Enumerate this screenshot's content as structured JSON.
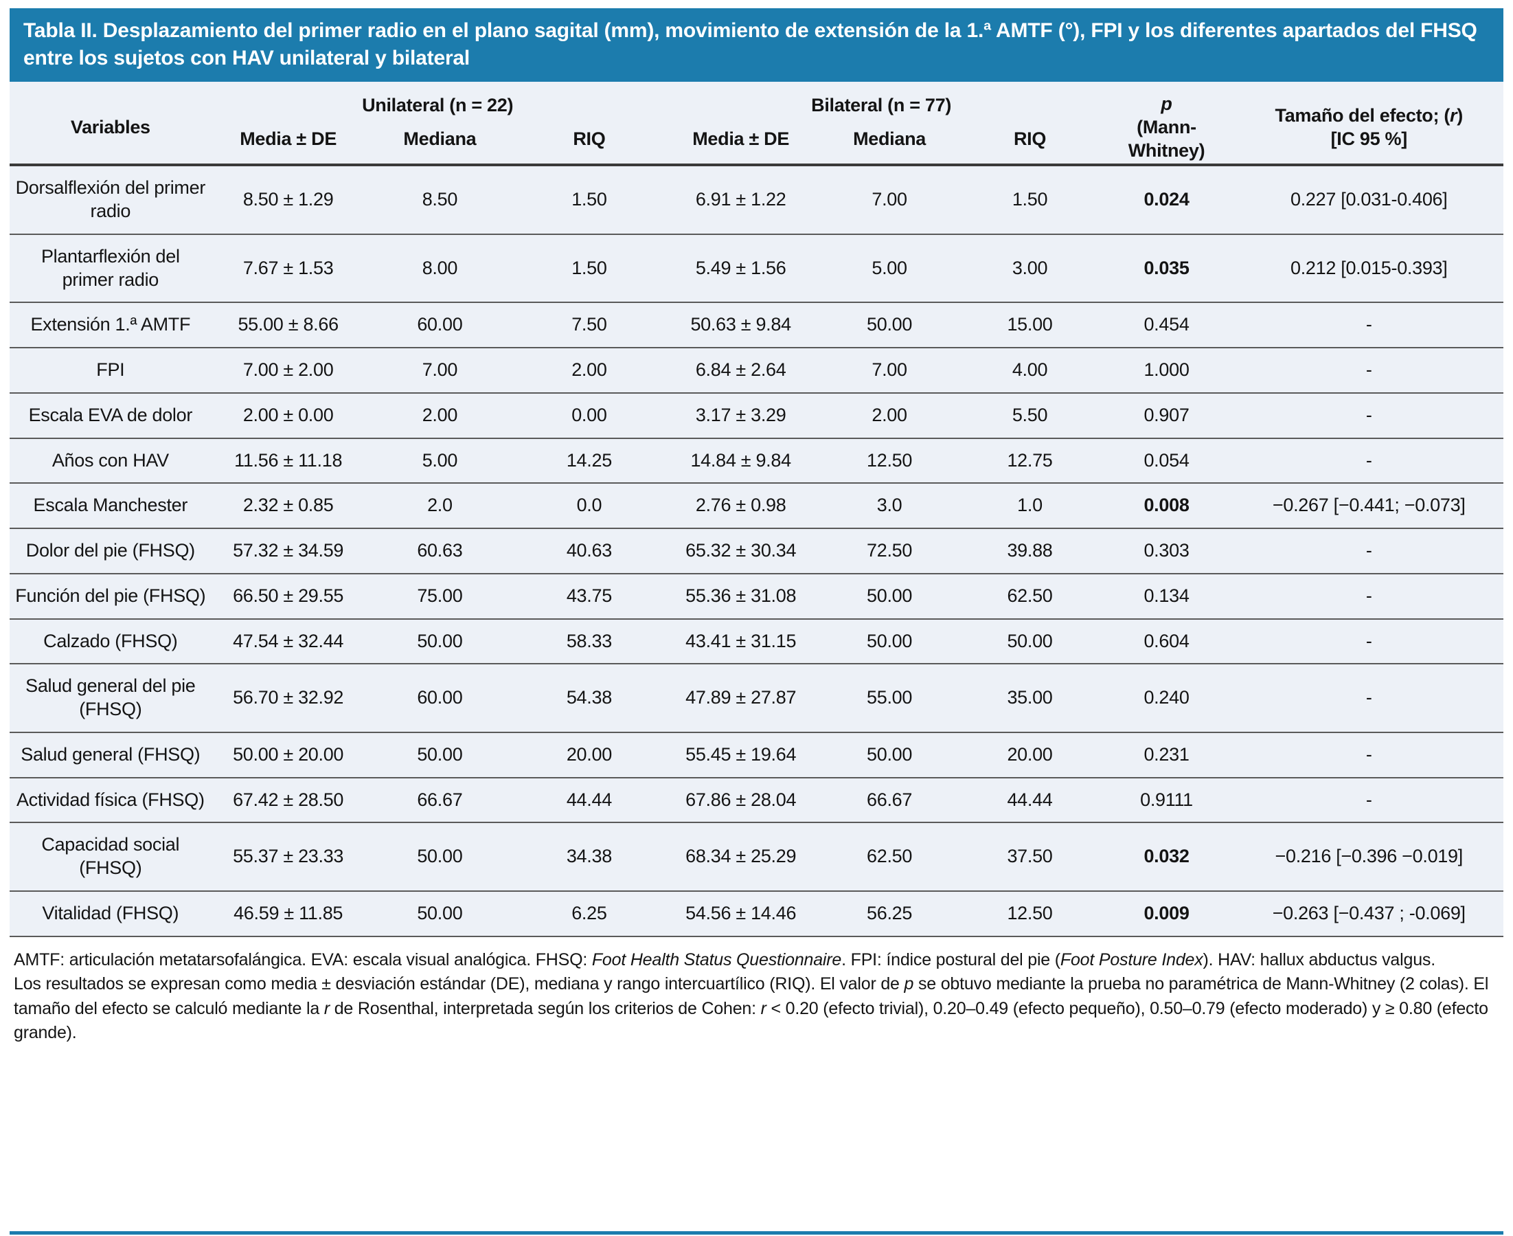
{
  "colors": {
    "header_bg": "#1C7CAD",
    "row_bg": "#EDF1F7",
    "rule_dark": "#3a3a3a",
    "rule_row": "#5a5a5a",
    "text": "#141414"
  },
  "title": "Tabla II. Desplazamiento del primer radio en el plano sagital (mm), movimiento de extensión de la 1.ª AMTF (°), FPI y los diferentes apartados del FHSQ entre los sujetos con HAV unilateral y bilateral",
  "table": {
    "header": {
      "variables": "Variables",
      "group_unilateral": "Unilateral (n = 22)",
      "group_bilateral": "Bilateral (n = 77)",
      "sub_media": "Media ± DE",
      "sub_mediana": "Mediana",
      "sub_riq": "RIQ",
      "p_col": [
        {
          "text": "p",
          "italic": true
        },
        {
          "br": true
        },
        {
          "text": "(Mann-Whitney)"
        }
      ],
      "effect_col": [
        {
          "text": "Tamaño del efecto; ("
        },
        {
          "text": "r",
          "italic": true
        },
        {
          "text": ")"
        },
        {
          "br": true
        },
        {
          "text": "[IC 95 %]"
        }
      ]
    },
    "rows": [
      {
        "label": "Dorsalflexión del primer radio",
        "uni_media": "8.50 ± 1.29",
        "uni_mediana": "8.50",
        "uni_riq": "1.50",
        "bil_media": "6.91 ± 1.22",
        "bil_mediana": "7.00",
        "bil_riq": "1.50",
        "p": "0.024",
        "p_bold": true,
        "effect": "0.227 [0.031-0.406]"
      },
      {
        "label": "Plantarflexión del primer radio",
        "uni_media": "7.67 ± 1.53",
        "uni_mediana": "8.00",
        "uni_riq": "1.50",
        "bil_media": "5.49 ± 1.56",
        "bil_mediana": "5.00",
        "bil_riq": "3.00",
        "p": "0.035",
        "p_bold": true,
        "effect": "0.212 [0.015-0.393]"
      },
      {
        "label": "Extensión 1.ª AMTF",
        "uni_media": "55.00 ± 8.66",
        "uni_mediana": "60.00",
        "uni_riq": "7.50",
        "bil_media": "50.63 ± 9.84",
        "bil_mediana": "50.00",
        "bil_riq": "15.00",
        "p": "0.454",
        "p_bold": false,
        "effect": "-"
      },
      {
        "label": "FPI",
        "uni_media": "7.00 ± 2.00",
        "uni_mediana": "7.00",
        "uni_riq": "2.00",
        "bil_media": "6.84 ± 2.64",
        "bil_mediana": "7.00",
        "bil_riq": "4.00",
        "p": "1.000",
        "p_bold": false,
        "effect": "-"
      },
      {
        "label": "Escala EVA de dolor",
        "uni_media": "2.00 ± 0.00",
        "uni_mediana": "2.00",
        "uni_riq": "0.00",
        "bil_media": "3.17 ± 3.29",
        "bil_mediana": "2.00",
        "bil_riq": "5.50",
        "p": "0.907",
        "p_bold": false,
        "effect": "-"
      },
      {
        "label": "Años con HAV",
        "uni_media": "11.56 ± 11.18",
        "uni_mediana": "5.00",
        "uni_riq": "14.25",
        "bil_media": "14.84 ± 9.84",
        "bil_mediana": "12.50",
        "bil_riq": "12.75",
        "p": "0.054",
        "p_bold": false,
        "effect": "-"
      },
      {
        "label": "Escala Manchester",
        "uni_media": "2.32 ± 0.85",
        "uni_mediana": "2.0",
        "uni_riq": "0.0",
        "bil_media": "2.76 ± 0.98",
        "bil_mediana": "3.0",
        "bil_riq": "1.0",
        "p": "0.008",
        "p_bold": true,
        "effect": "−0.267 [−0.441; −0.073]"
      },
      {
        "label": "Dolor del pie (FHSQ)",
        "uni_media": "57.32 ± 34.59",
        "uni_mediana": "60.63",
        "uni_riq": "40.63",
        "bil_media": "65.32 ± 30.34",
        "bil_mediana": "72.50",
        "bil_riq": "39.88",
        "p": "0.303",
        "p_bold": false,
        "effect": "-"
      },
      {
        "label": "Función del pie (FHSQ)",
        "uni_media": "66.50 ± 29.55",
        "uni_mediana": "75.00",
        "uni_riq": "43.75",
        "bil_media": "55.36 ± 31.08",
        "bil_mediana": "50.00",
        "bil_riq": "62.50",
        "p": "0.134",
        "p_bold": false,
        "effect": "-"
      },
      {
        "label": "Calzado (FHSQ)",
        "uni_media": "47.54 ± 32.44",
        "uni_mediana": "50.00",
        "uni_riq": "58.33",
        "bil_media": "43.41 ± 31.15",
        "bil_mediana": "50.00",
        "bil_riq": "50.00",
        "p": "0.604",
        "p_bold": false,
        "effect": "-"
      },
      {
        "label": "Salud general del pie (FHSQ)",
        "uni_media": "56.70 ± 32.92",
        "uni_mediana": "60.00",
        "uni_riq": "54.38",
        "bil_media": "47.89 ± 27.87",
        "bil_mediana": "55.00",
        "bil_riq": "35.00",
        "p": "0.240",
        "p_bold": false,
        "effect": "-"
      },
      {
        "label": "Salud general (FHSQ)",
        "uni_media": "50.00 ± 20.00",
        "uni_mediana": "50.00",
        "uni_riq": "20.00",
        "bil_media": "55.45 ± 19.64",
        "bil_mediana": "50.00",
        "bil_riq": "20.00",
        "p": "0.231",
        "p_bold": false,
        "effect": "-"
      },
      {
        "label": "Actividad física (FHSQ)",
        "uni_media": "67.42 ± 28.50",
        "uni_mediana": "66.67",
        "uni_riq": "44.44",
        "bil_media": "67.86 ± 28.04",
        "bil_mediana": "66.67",
        "bil_riq": "44.44",
        "p": "0.9111",
        "p_bold": false,
        "effect": "-"
      },
      {
        "label": "Capacidad social (FHSQ)",
        "uni_media": "55.37 ± 23.33",
        "uni_mediana": "50.00",
        "uni_riq": "34.38",
        "bil_media": "68.34 ± 25.29",
        "bil_mediana": "62.50",
        "bil_riq": "37.50",
        "p": "0.032",
        "p_bold": true,
        "effect": "−0.216 [−0.396 −0.019]"
      },
      {
        "label": "Vitalidad (FHSQ)",
        "uni_media": "46.59 ± 11.85",
        "uni_mediana": "50.00",
        "uni_riq": "6.25",
        "bil_media": "54.56 ± 14.46",
        "bil_mediana": "56.25",
        "bil_riq": "12.50",
        "p": "0.009",
        "p_bold": true,
        "effect": "−0.263 [−0.437 ; -0.069]"
      }
    ]
  },
  "footnotes": {
    "abbreviations": [
      {
        "text": "AMTF: articulación metatarsofalángica. EVA: escala visual analógica. FHSQ: "
      },
      {
        "text": "Foot Health Status Questionnaire",
        "italic": true
      },
      {
        "text": ". FPI: índice postural del pie ("
      },
      {
        "text": "Foot Posture Index",
        "italic": true
      },
      {
        "text": "). HAV: hallux abductus valgus."
      }
    ],
    "methods": [
      {
        "text": "Los resultados se expresan como media ± desviación estándar (DE), mediana y rango intercuartílico (RIQ). El valor de "
      },
      {
        "text": "p",
        "italic": true
      },
      {
        "text": " se obtuvo mediante la prueba no paramétrica de Mann-Whitney (2 colas). El tamaño del efecto se calculó mediante la "
      },
      {
        "text": "r",
        "italic": true
      },
      {
        "text": " de Rosenthal, interpretada según los criterios de Cohen: "
      },
      {
        "text": "r",
        "italic": true
      },
      {
        "text": " < 0.20 (efecto trivial), 0.20–0.49 (efecto pequeño), 0.50–0.79 (efecto moderado) y ≥ 0.80 (efecto grande)."
      }
    ]
  }
}
